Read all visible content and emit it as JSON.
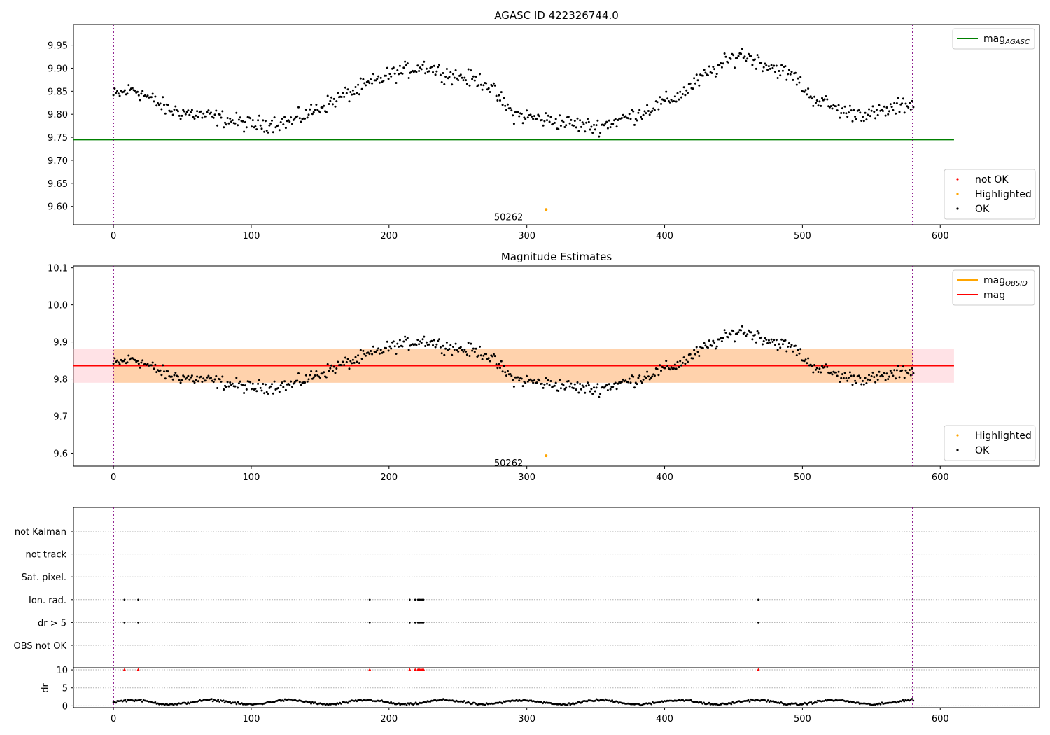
{
  "chart_data": [
    {
      "type": "scatter",
      "title": "AGASC ID 422326744.0",
      "xlim": [
        -29,
        672
      ],
      "ylim": [
        9.56,
        9.995
      ],
      "xticks": [
        "0",
        "100",
        "200",
        "300",
        "400",
        "500",
        "600"
      ],
      "yticks": [
        "9.60",
        "9.65",
        "9.70",
        "9.75",
        "9.80",
        "9.85",
        "9.90",
        "9.95"
      ],
      "xtick_values": [
        0,
        100,
        200,
        300,
        400,
        500,
        600
      ],
      "ytick_values": [
        9.6,
        9.65,
        9.7,
        9.75,
        9.8,
        9.85,
        9.9,
        9.95
      ],
      "vlines": [
        0,
        580
      ],
      "hline": {
        "name": "mag_AGASC",
        "value": 9.745,
        "xmax": 610,
        "color": "#008000"
      },
      "series": [
        {
          "name": "not OK",
          "color": "#ff0000",
          "x": [],
          "y": []
        },
        {
          "name": "Highlighted",
          "color": "#ffa500",
          "x": [
            314
          ],
          "y": [
            9.593
          ]
        },
        {
          "name": "OK",
          "color": "#000000",
          "x": [],
          "y": []
        }
      ],
      "annotation": {
        "text": "50262",
        "x": 314,
        "y": 9.593
      },
      "legends": [
        {
          "position": "top-right",
          "entries": [
            {
              "label": "mag",
              "sub": "AGASC",
              "kind": "line",
              "color": "#008000"
            }
          ]
        },
        {
          "position": "bottom-right",
          "entries": [
            {
              "label": "not OK",
              "kind": "dot",
              "color": "#ff0000"
            },
            {
              "label": "Highlighted",
              "kind": "dot",
              "color": "#ffa500"
            },
            {
              "label": "OK",
              "kind": "dot",
              "color": "#000000"
            }
          ]
        }
      ]
    },
    {
      "type": "scatter",
      "title": "Magnitude Estimates",
      "xlim": [
        -29,
        672
      ],
      "ylim": [
        9.565,
        10.105
      ],
      "xticks": [
        "0",
        "100",
        "200",
        "300",
        "400",
        "500",
        "600"
      ],
      "yticks": [
        "9.6",
        "9.7",
        "9.8",
        "9.9",
        "10.0",
        "10.1"
      ],
      "xtick_values": [
        0,
        100,
        200,
        300,
        400,
        500,
        600
      ],
      "ytick_values": [
        9.6,
        9.7,
        9.8,
        9.9,
        10.0,
        10.1
      ],
      "vlines": [
        0,
        580
      ],
      "hline": {
        "name": "mag",
        "value": 9.836,
        "xmax": 610,
        "color": "#ff0000"
      },
      "bands": [
        {
          "y0": 9.79,
          "y1": 9.882,
          "color": "#ffb6c1",
          "opacity": 0.4
        },
        {
          "y0": 9.79,
          "y1": 9.882,
          "color": "#ffa500",
          "opacity": 0.25,
          "xmin": 0,
          "xmax": 580
        }
      ],
      "series": [
        {
          "name": "Highlighted",
          "color": "#ffa500",
          "x": [
            314
          ],
          "y": [
            9.593
          ]
        },
        {
          "name": "OK",
          "color": "#000000",
          "x": [],
          "y": []
        }
      ],
      "annotation": {
        "text": "50262",
        "x": 314,
        "y": 9.593
      },
      "legends": [
        {
          "position": "top-right",
          "entries": [
            {
              "label": "mag",
              "sub": "OBSID",
              "kind": "line",
              "color": "#ffa500"
            },
            {
              "label": "mag",
              "kind": "line",
              "color": "#ff0000"
            }
          ]
        },
        {
          "position": "bottom-right",
          "entries": [
            {
              "label": "Highlighted",
              "kind": "dot",
              "color": "#ffa500"
            },
            {
              "label": "OK",
              "kind": "dot",
              "color": "#000000"
            }
          ]
        }
      ]
    },
    {
      "type": "scatter",
      "title": "",
      "xlim": [
        -29,
        672
      ],
      "ylabel_lower": "dr",
      "xticks": [
        "0",
        "100",
        "200",
        "300",
        "400",
        "500",
        "600"
      ],
      "xtick_values": [
        0,
        100,
        200,
        300,
        400,
        500,
        600
      ],
      "flag_rows": [
        "not Kalman",
        "not track",
        "Sat. pixel.",
        "Ion. rad.",
        "dr > 5",
        "OBS not OK"
      ],
      "flags": {
        "Ion. rad.": [
          8,
          18,
          186,
          215,
          219,
          221,
          222,
          223,
          224,
          225,
          468
        ],
        "dr > 5": [
          8,
          18,
          186,
          215,
          219,
          221,
          222,
          223,
          224,
          225,
          468
        ]
      },
      "dr_yticks": [
        "0",
        "5",
        "10"
      ],
      "dr_ytick_values": [
        0,
        5,
        10
      ],
      "dr_ylim": [
        -0.5,
        10.4
      ],
      "dr_above_limit": [
        8,
        18,
        186,
        215,
        219,
        221,
        222,
        223,
        224,
        225,
        468
      ],
      "dr_series": {
        "name": "dr",
        "color": "#000000",
        "x": [],
        "y": []
      },
      "vlines": [
        0,
        580
      ]
    }
  ]
}
